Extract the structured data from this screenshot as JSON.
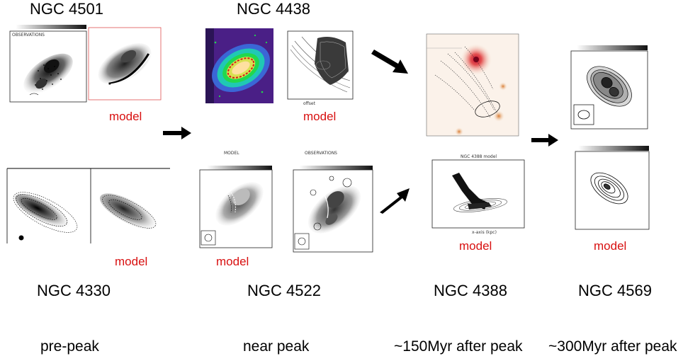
{
  "galaxies": {
    "ngc4501": "NGC 4501",
    "ngc4438": "NGC 4438",
    "ngc4330": "NGC 4330",
    "ngc4522": "NGC 4522",
    "ngc4388": "NGC 4388",
    "ngc4569": "NGC 4569"
  },
  "model_label": "model",
  "panel_titles": {
    "ngc4501_obs": "OBSERVATIONS",
    "ngc4522_model": "MODEL",
    "ngc4522_obs": "OBSERVATIONS",
    "ngc4388_model": "NGC 4388 model"
  },
  "phases": {
    "pre_peak": "pre-peak",
    "near_peak": "near peak",
    "after_150": "~150Myr after peak",
    "after_300": "~300Myr after peak"
  },
  "colors": {
    "model_label": "#d81010",
    "arrow": "#000000"
  }
}
